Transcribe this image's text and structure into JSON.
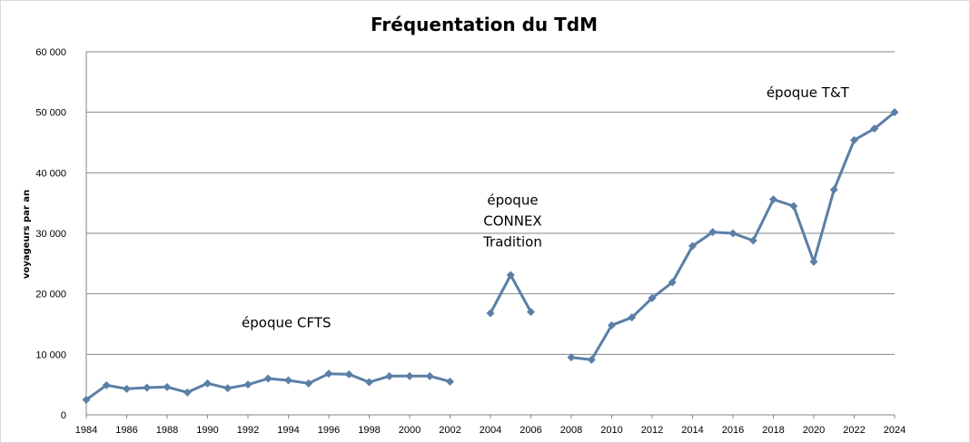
{
  "chart_data": {
    "type": "line",
    "title": "Fréquentation du TdM",
    "xlabel": "",
    "ylabel": "voyageurs par an",
    "xlim": [
      1984,
      2024
    ],
    "ylim": [
      0,
      60000
    ],
    "x_ticks": [
      1984,
      1986,
      1988,
      1990,
      1992,
      1994,
      1996,
      1998,
      2000,
      2002,
      2004,
      2006,
      2008,
      2010,
      2012,
      2014,
      2016,
      2018,
      2020,
      2022,
      2024
    ],
    "y_ticks": [
      0,
      10000,
      20000,
      30000,
      40000,
      50000,
      60000
    ],
    "y_tick_labels": [
      "0",
      "10 000",
      "20 000",
      "30 000",
      "40 000",
      "50 000",
      "60 000"
    ],
    "grid": "horizontal",
    "legend": "none",
    "color": "#5B7FA6",
    "series": [
      {
        "segments": [
          [
            [
              1984,
              2500
            ],
            [
              1985,
              4900
            ],
            [
              1986,
              4300
            ],
            [
              1987,
              4500
            ],
            [
              1988,
              4600
            ],
            [
              1989,
              3700
            ],
            [
              1990,
              5200
            ],
            [
              1991,
              4400
            ],
            [
              1992,
              5000
            ],
            [
              1993,
              6000
            ],
            [
              1994,
              5700
            ],
            [
              1995,
              5200
            ],
            [
              1996,
              6800
            ],
            [
              1997,
              6700
            ],
            [
              1998,
              5400
            ],
            [
              1999,
              6400
            ],
            [
              2000,
              6400
            ],
            [
              2001,
              6400
            ],
            [
              2002,
              5500
            ]
          ],
          [
            [
              2004,
              16800
            ],
            [
              2005,
              23100
            ],
            [
              2006,
              17000
            ]
          ],
          [
            [
              2008,
              9500
            ],
            [
              2009,
              9100
            ],
            [
              2010,
              14800
            ],
            [
              2011,
              16100
            ],
            [
              2012,
              19300
            ],
            [
              2013,
              21900
            ],
            [
              2014,
              27900
            ],
            [
              2015,
              30200
            ],
            [
              2016,
              30000
            ],
            [
              2017,
              28800
            ],
            [
              2018,
              35600
            ],
            [
              2019,
              34500
            ],
            [
              2020,
              25300
            ],
            [
              2021,
              37200
            ],
            [
              2022,
              45400
            ],
            [
              2023,
              47300
            ],
            [
              2024,
              50000
            ]
          ]
        ]
      }
    ],
    "annotations": [
      {
        "name": "annotation-cfts",
        "lines": [
          "époque CFTS"
        ],
        "x": 1993.9,
        "y": 14500
      },
      {
        "name": "annotation-connex",
        "lines": [
          "époque",
          "CONNEX",
          "Tradition"
        ],
        "x": 2005.1,
        "y": 34700
      },
      {
        "name": "annotation-tt",
        "lines": [
          "époque T&T"
        ],
        "x": 2019.7,
        "y": 52500
      }
    ]
  }
}
